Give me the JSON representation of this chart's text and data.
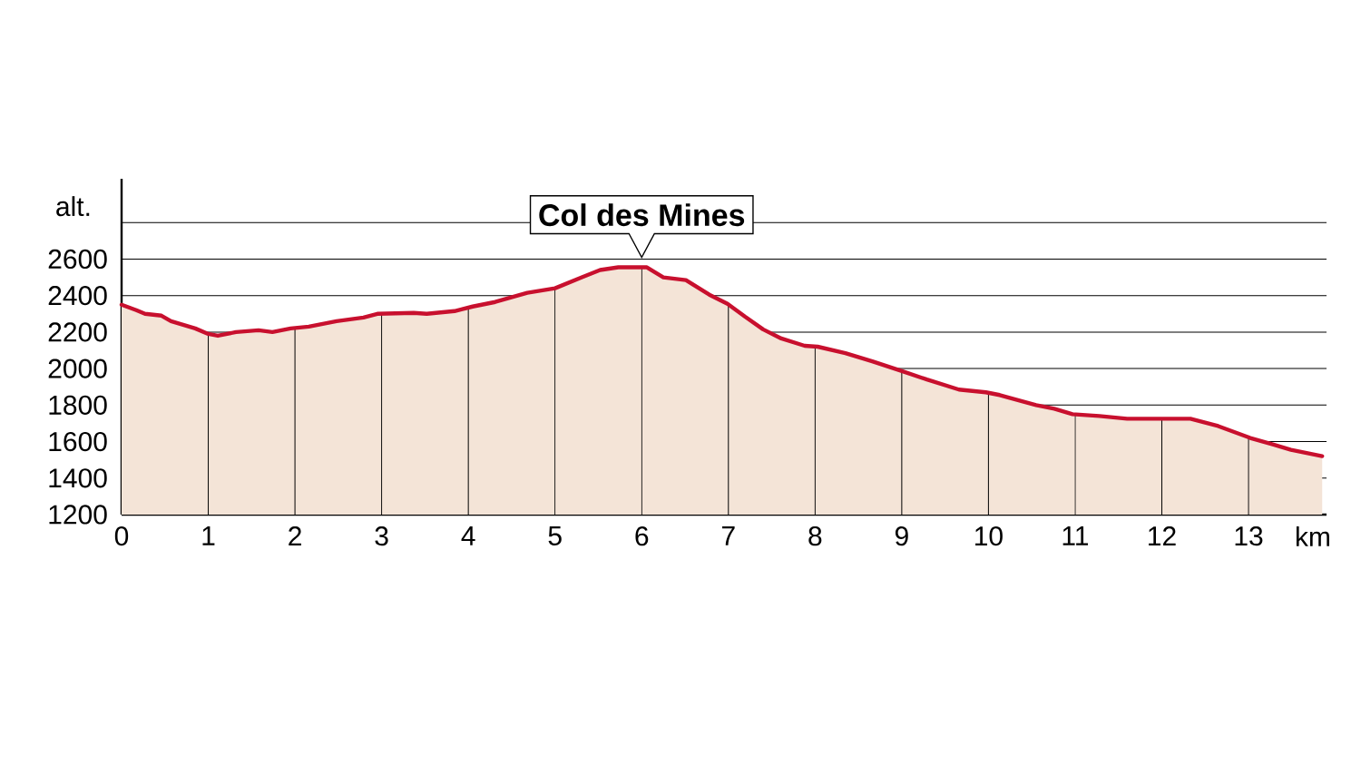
{
  "chart_data": {
    "type": "area",
    "xlabel": "km",
    "ylabel": "alt.",
    "grid": true,
    "x": [
      0,
      0.17,
      0.27,
      0.46,
      0.57,
      0.85,
      1.0,
      1.11,
      1.32,
      1.58,
      1.74,
      1.95,
      2.16,
      2.48,
      2.79,
      2.95,
      3.37,
      3.52,
      3.84,
      4.05,
      4.31,
      4.68,
      5.0,
      5.31,
      5.52,
      5.73,
      6.06,
      6.25,
      6.51,
      6.78,
      6.99,
      7.19,
      7.4,
      7.61,
      7.88,
      8.03,
      8.35,
      8.66,
      9.01,
      9.29,
      9.66,
      9.97,
      10.13,
      10.55,
      10.76,
      10.97,
      11.28,
      11.6,
      12.33,
      12.65,
      13.02,
      13.28,
      13.49,
      13.85
    ],
    "series": [
      {
        "color": "#c8102e",
        "values": [
          2350,
          2320,
          2300,
          2290,
          2260,
          2220,
          2190,
          2180,
          2200,
          2210,
          2200,
          2220,
          2230,
          2260,
          2280,
          2300,
          2305,
          2300,
          2315,
          2340,
          2365,
          2415,
          2440,
          2500,
          2540,
          2555,
          2555,
          2500,
          2485,
          2405,
          2355,
          2285,
          2215,
          2165,
          2125,
          2120,
          2085,
          2040,
          1985,
          1940,
          1885,
          1870,
          1855,
          1800,
          1780,
          1750,
          1740,
          1725,
          1725,
          1685,
          1620,
          1585,
          1555,
          1520
        ]
      }
    ],
    "xlim": [
      0,
      13.9
    ],
    "ylim": [
      1200,
      3040
    ],
    "xticks": [
      0,
      1,
      2,
      3,
      4,
      5,
      6,
      7,
      8,
      9,
      10,
      11,
      12,
      13
    ],
    "yticks": [
      1200,
      1400,
      1600,
      1800,
      2000,
      2200,
      2400,
      2600,
      {
        "value": 2800,
        "label": null
      }
    ],
    "annotations": [
      {
        "text": "Col des Mines",
        "x": 6,
        "y": 2555
      }
    ]
  }
}
